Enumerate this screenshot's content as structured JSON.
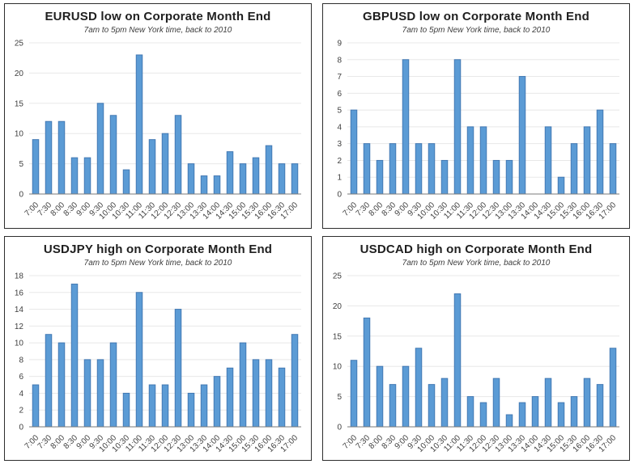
{
  "style": {
    "bar_fill": "#5B9BD5",
    "bar_stroke": "#4379B3",
    "grid_color": "#E8E8E8",
    "axis_color": "#7A7A7A",
    "title_color": "#1F1F1F",
    "subtitle_color": "#3D3D3D",
    "tick_label_color": "#3F3F3F",
    "panel_border": "#2E2E2E",
    "background": "#FFFFFF"
  },
  "chart_data": [
    {
      "type": "bar",
      "title": "EURUSD low on Corporate Month End",
      "subtitle": "7am to 5pm New York time, back to 2010",
      "categories": [
        "7:00",
        "7:30",
        "8:00",
        "8:30",
        "9:00",
        "9:30",
        "10:00",
        "10:30",
        "11:00",
        "11:30",
        "12:00",
        "12:30",
        "13:00",
        "13:30",
        "14:00",
        "14:30",
        "15:00",
        "15:30",
        "16:00",
        "16:30",
        "17:00"
      ],
      "values": [
        9,
        12,
        12,
        6,
        6,
        15,
        13,
        4,
        23,
        9,
        10,
        13,
        5,
        3,
        3,
        7,
        5,
        6,
        8,
        5,
        5
      ],
      "xlabel": "",
      "ylabel": "",
      "ylim": [
        0,
        25
      ],
      "ytick": 5,
      "grid": true,
      "legend": "none"
    },
    {
      "type": "bar",
      "title": "GBPUSD low on Corporate Month End",
      "subtitle": "7am to 5pm New York time, back to 2010",
      "categories": [
        "7:00",
        "7:30",
        "8:00",
        "8:30",
        "9:00",
        "9:30",
        "10:00",
        "10:30",
        "11:00",
        "11:30",
        "12:00",
        "12:30",
        "13:00",
        "13:30",
        "14:00",
        "14:30",
        "15:00",
        "15:30",
        "16:00",
        "16:30",
        "17:00"
      ],
      "values": [
        5,
        3,
        2,
        3,
        8,
        3,
        3,
        2,
        8,
        4,
        4,
        2,
        2,
        7,
        0,
        4,
        1,
        3,
        4,
        5,
        3
      ],
      "xlabel": "",
      "ylabel": "",
      "ylim": [
        0,
        9
      ],
      "ytick": 1,
      "grid": true,
      "legend": "none"
    },
    {
      "type": "bar",
      "title": "USDJPY high on Corporate Month End",
      "subtitle": "7am to 5pm New York time, back to 2010",
      "categories": [
        "7:00",
        "7:30",
        "8:00",
        "8:30",
        "9:00",
        "9:30",
        "10:00",
        "10:30",
        "11:00",
        "11:30",
        "12:00",
        "12:30",
        "13:00",
        "13:30",
        "14:00",
        "14:30",
        "15:00",
        "15:30",
        "16:00",
        "16:30",
        "17:00"
      ],
      "values": [
        5,
        11,
        10,
        17,
        8,
        8,
        10,
        4,
        16,
        5,
        5,
        14,
        4,
        5,
        6,
        7,
        10,
        8,
        8,
        7,
        11
      ],
      "xlabel": "",
      "ylabel": "",
      "ylim": [
        0,
        18
      ],
      "ytick": 2,
      "grid": true,
      "legend": "none"
    },
    {
      "type": "bar",
      "title": "USDCAD high on Corporate Month End",
      "subtitle": "7am to 5pm New York time, back to 2010",
      "categories": [
        "7:00",
        "7:30",
        "8:00",
        "8:30",
        "9:00",
        "9:30",
        "10:00",
        "10:30",
        "11:00",
        "11:30",
        "12:00",
        "12:30",
        "13:00",
        "13:30",
        "14:00",
        "14:30",
        "15:00",
        "15:30",
        "16:00",
        "16:30",
        "17:00"
      ],
      "values": [
        11,
        18,
        10,
        7,
        10,
        13,
        7,
        8,
        22,
        5,
        4,
        8,
        2,
        4,
        5,
        8,
        4,
        5,
        8,
        7,
        13
      ],
      "xlabel": "",
      "ylabel": "",
      "ylim": [
        0,
        25
      ],
      "ytick": 5,
      "grid": true,
      "legend": "none"
    }
  ]
}
